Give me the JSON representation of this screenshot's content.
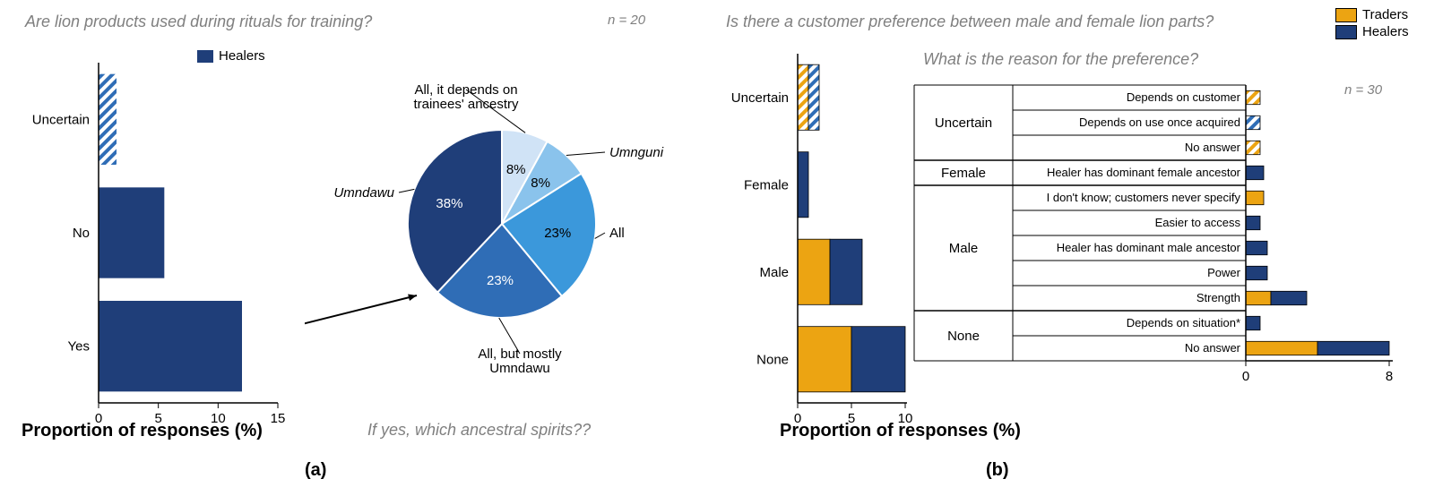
{
  "colors": {
    "healers": "#1f3e79",
    "traders": "#eca412",
    "pie": [
      "#d0e3f6",
      "#8ac3ec",
      "#3b98db",
      "#2f6db6",
      "#1f3e79"
    ],
    "axis": "#000000",
    "hatch_blue": "#2f6db6",
    "hatch_orange": "#eca412",
    "grey": "#7f7f7f",
    "white": "#ffffff"
  },
  "font": {
    "title": 18,
    "axis_label": 20,
    "tick": 15,
    "pie_label": 15,
    "pie_pct": 15,
    "table_reason": 13,
    "table_cat": 15,
    "legend": 15,
    "sublabel": 20,
    "n": 15
  },
  "panelA": {
    "question": "Are lion products used during rituals for training?",
    "n": "n = 20",
    "legend": "Healers",
    "axis_label": "Proportion of responses (%)",
    "categories": [
      "Uncertain",
      "No",
      "Yes"
    ],
    "values": [
      1.5,
      5.5,
      12
    ],
    "hatched": [
      true,
      false,
      false
    ],
    "xlim": [
      0,
      15
    ],
    "xticks": [
      0,
      5,
      10,
      15
    ],
    "sub_question": "If yes, which ancestral spirits??",
    "pie": {
      "labels": [
        "All, it depends on\ntrainees' ancestry",
        "Umnguni",
        "All",
        "All, but mostly\nUmndawu",
        "Umndawu"
      ],
      "label_italic": [
        false,
        true,
        false,
        false,
        true
      ],
      "values": [
        8,
        8,
        23,
        23,
        38
      ],
      "start_angle": 90
    },
    "sublabel": "(a)"
  },
  "panelB": {
    "question": "Is there a customer preference between male and female lion parts?",
    "n": "n = 30",
    "legend": [
      "Traders",
      "Healers"
    ],
    "axis_label": "Proportion of responses (%)",
    "categories": [
      "Uncertain",
      "Female",
      "Male",
      "None"
    ],
    "traders": [
      1,
      0,
      3,
      5
    ],
    "healers": [
      1,
      1,
      3,
      5
    ],
    "hatched": [
      true,
      false,
      false,
      false
    ],
    "xlim": [
      0,
      10
    ],
    "xticks": [
      0,
      5,
      10
    ],
    "sub_question": "What is the reason for the preference?",
    "table": {
      "groups": [
        {
          "name": "Uncertain",
          "rows": [
            {
              "reason": "Depends on customer",
              "traders": 0.8,
              "healers": 0,
              "hatched": true
            },
            {
              "reason": "Depends on use once acquired",
              "traders": 0,
              "healers": 0.8,
              "hatched": true
            },
            {
              "reason": "No answer",
              "traders": 0.8,
              "healers": 0,
              "hatched": true
            }
          ]
        },
        {
          "name": "Female",
          "rows": [
            {
              "reason": "Healer has dominant female ancestor",
              "traders": 0,
              "healers": 1,
              "hatched": false
            }
          ]
        },
        {
          "name": "Male",
          "rows": [
            {
              "reason": "I don't know; customers never specify",
              "traders": 1,
              "healers": 0,
              "hatched": false
            },
            {
              "reason": "Easier to access",
              "traders": 0,
              "healers": 0.8,
              "hatched": false
            },
            {
              "reason": "Healer has dominant male ancestor",
              "traders": 0,
              "healers": 1.2,
              "hatched": false
            },
            {
              "reason": "Power",
              "traders": 0,
              "healers": 1.2,
              "hatched": false
            },
            {
              "reason": "Strength",
              "traders": 1.4,
              "healers": 2,
              "hatched": false
            }
          ]
        },
        {
          "name": "None",
          "rows": [
            {
              "reason": "Depends on situation*",
              "traders": 0,
              "healers": 0.8,
              "hatched": false
            },
            {
              "reason": "No answer",
              "traders": 4,
              "healers": 4,
              "hatched": false
            }
          ]
        }
      ],
      "xlim": [
        0,
        8
      ]
    },
    "sublabel": "(b)"
  }
}
